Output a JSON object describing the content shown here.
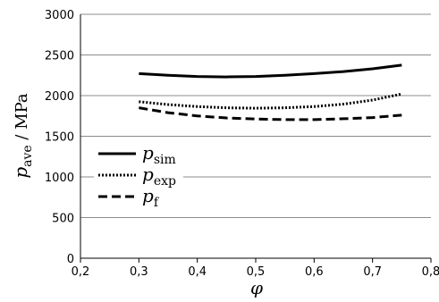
{
  "chart_data": {
    "type": "line",
    "title": "",
    "xlabel": "φ",
    "ylabel": {
      "main": "p",
      "sub": "ave",
      "unit": " / MPa"
    },
    "xlim": [
      0.2,
      0.8
    ],
    "ylim": [
      0,
      3000
    ],
    "x_ticks": [
      "0,2",
      "0,3",
      "0,4",
      "0,5",
      "0,6",
      "0,7",
      "0,8"
    ],
    "y_ticks": [
      "0",
      "500",
      "1000",
      "1500",
      "2000",
      "2500",
      "3000"
    ],
    "grid": "horizontal",
    "legend_position": "lower-left",
    "series": [
      {
        "name": "p",
        "sub": "sim",
        "style": "solid",
        "color": "#000000",
        "x": [
          0.3,
          0.35,
          0.4,
          0.45,
          0.5,
          0.55,
          0.6,
          0.65,
          0.7,
          0.75
        ],
        "y": [
          2270,
          2250,
          2235,
          2230,
          2235,
          2250,
          2270,
          2295,
          2330,
          2375
        ]
      },
      {
        "name": "p",
        "sub": "exp",
        "style": "dotted",
        "color": "#000000",
        "x": [
          0.3,
          0.35,
          0.4,
          0.45,
          0.5,
          0.55,
          0.6,
          0.65,
          0.7,
          0.75
        ],
        "y": [
          1925,
          1890,
          1865,
          1850,
          1845,
          1850,
          1865,
          1895,
          1945,
          2020
        ]
      },
      {
        "name": "p",
        "sub": "f",
        "style": "dashed",
        "color": "#000000",
        "x": [
          0.3,
          0.35,
          0.4,
          0.45,
          0.5,
          0.55,
          0.6,
          0.65,
          0.7,
          0.75
        ],
        "y": [
          1850,
          1790,
          1750,
          1725,
          1712,
          1705,
          1705,
          1715,
          1730,
          1760
        ]
      }
    ]
  }
}
